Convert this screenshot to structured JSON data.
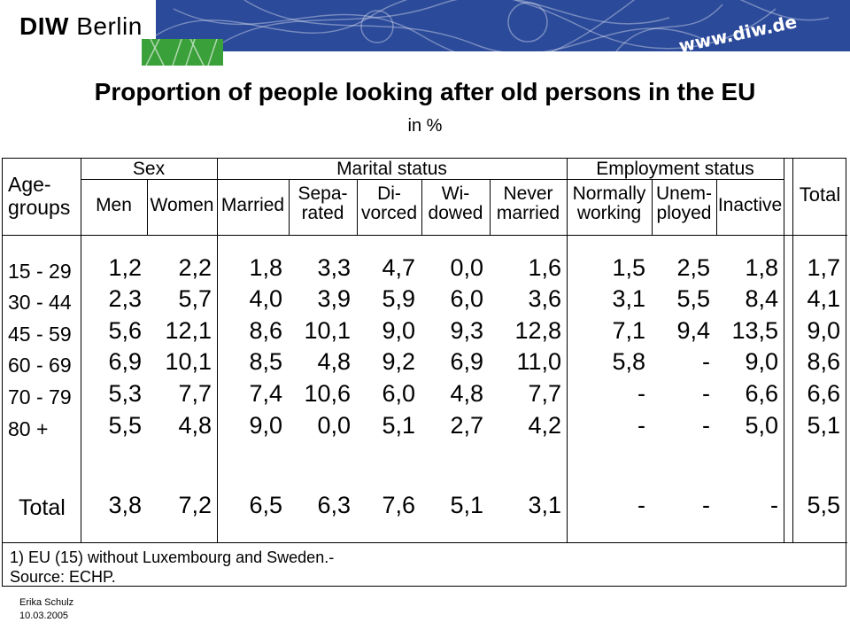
{
  "header": {
    "logo_bold": "DIW",
    "logo_rest": "Berlin",
    "url": "www.diw.de"
  },
  "title": "Proportion of people looking after old persons in the EU",
  "subtitle": "in %",
  "table": {
    "groups": {
      "sex": "Sex",
      "marital": "Marital status",
      "employment": "Employment status"
    },
    "age_header": [
      "Age-",
      "groups"
    ],
    "total_header": "Total",
    "columns": [
      [
        "Men"
      ],
      [
        "Women"
      ],
      [
        "Married"
      ],
      [
        "Sepa-",
        "rated"
      ],
      [
        "Di-",
        "vorced"
      ],
      [
        "Wi-",
        "dowed"
      ],
      [
        "Never",
        "married"
      ],
      [
        "Normally",
        "working"
      ],
      [
        "Unem-",
        "ployed"
      ],
      [
        "Inactive"
      ]
    ],
    "rows": [
      {
        "age": "15 - 29",
        "values": [
          "1,2",
          "2,2",
          "1,8",
          "3,3",
          "4,7",
          "0,0",
          "1,6",
          "1,5",
          "2,5",
          "1,8",
          "1,7"
        ]
      },
      {
        "age": "30 - 44",
        "values": [
          "2,3",
          "5,7",
          "4,0",
          "3,9",
          "5,9",
          "6,0",
          "3,6",
          "3,1",
          "5,5",
          "8,4",
          "4,1"
        ]
      },
      {
        "age": "45 - 59",
        "values": [
          "5,6",
          "12,1",
          "8,6",
          "10,1",
          "9,0",
          "9,3",
          "12,8",
          "7,1",
          "9,4",
          "13,5",
          "9,0"
        ]
      },
      {
        "age": "60 - 69",
        "values": [
          "6,9",
          "10,1",
          "8,5",
          "4,8",
          "9,2",
          "6,9",
          "11,0",
          "5,8",
          "-",
          "9,0",
          "8,6"
        ]
      },
      {
        "age": "70 - 79",
        "values": [
          "5,3",
          "7,7",
          "7,4",
          "10,6",
          "6,0",
          "4,8",
          "7,7",
          "-",
          "-",
          "6,6",
          "6,6"
        ]
      },
      {
        "age": "80 +",
        "values": [
          "5,5",
          "4,8",
          "9,0",
          "0,0",
          "5,1",
          "2,7",
          "4,2",
          "-",
          "-",
          "5,0",
          "5,1"
        ]
      }
    ],
    "total_row": {
      "age": "Total",
      "values": [
        "3,8",
        "7,2",
        "6,5",
        "6,3",
        "7,6",
        "5,1",
        "3,1",
        "-",
        "-",
        "-",
        "5,5"
      ]
    }
  },
  "footnotes": [
    "1) EU (15) without Luxembourg and Sweden.-",
    "Source: ECHP."
  ],
  "author": "Erika Schulz",
  "date": "10.03.2005",
  "colors": {
    "banner": "#2b4a9a",
    "green": "#3aa03a"
  }
}
